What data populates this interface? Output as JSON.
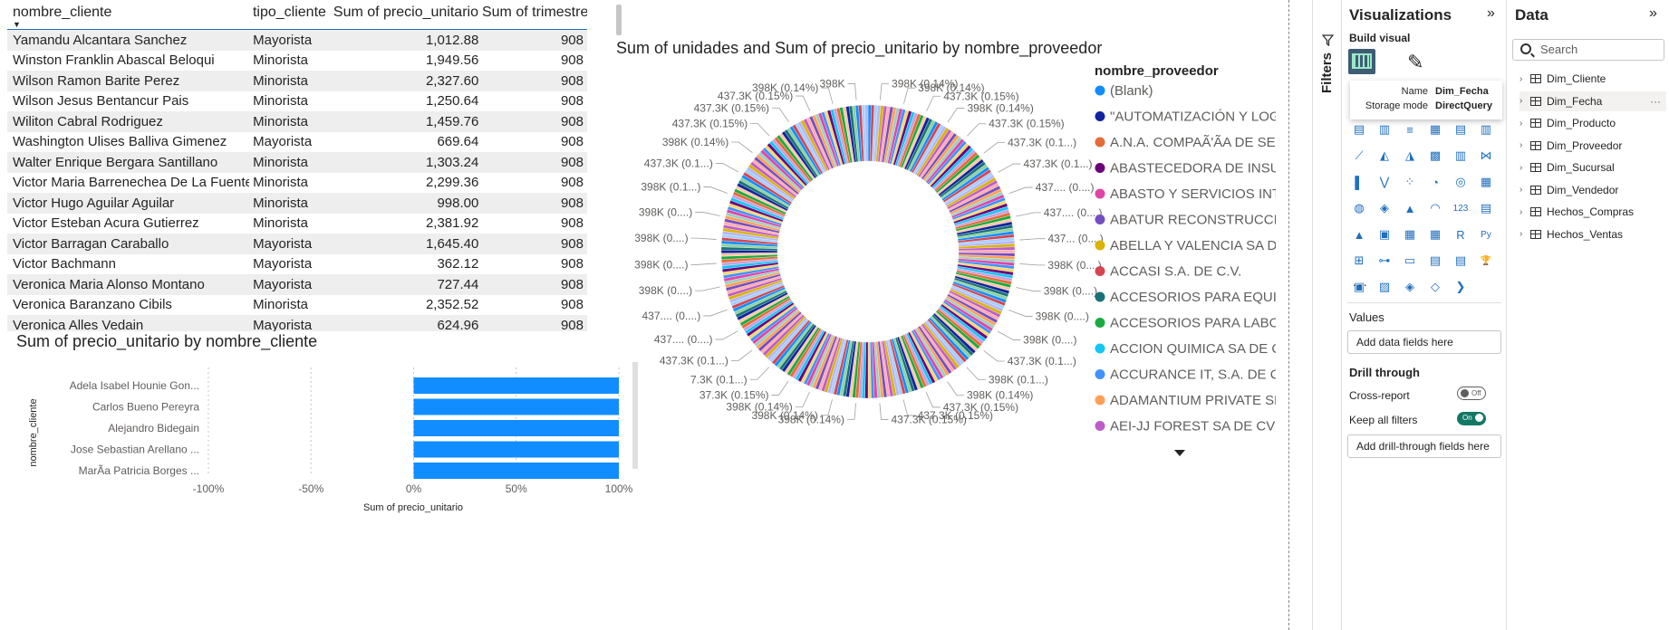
{
  "table": {
    "headers": [
      "nombre_cliente",
      "tipo_cliente",
      "Sum of precio_unitario",
      "Sum of trimestre"
    ],
    "rows": [
      [
        "Yamandu Alcantara Sanchez",
        "Mayorista",
        "1,012.88",
        "908"
      ],
      [
        "Winston Franklin Abascal Beloqui",
        "Minorista",
        "1,949.56",
        "908"
      ],
      [
        "Wilson Ramon Barite Perez",
        "Minorista",
        "2,327.60",
        "908"
      ],
      [
        "Wilson Jesus Bentancur Pais",
        "Minorista",
        "1,250.64",
        "908"
      ],
      [
        "Wiliton Cabral Rodriguez",
        "Minorista",
        "1,459.76",
        "908"
      ],
      [
        "Washington Ulises Balliva Gimenez",
        "Mayorista",
        "669.64",
        "908"
      ],
      [
        "Walter Enrique Bergara Santillano",
        "Minorista",
        "1,303.24",
        "908"
      ],
      [
        "Victor Maria Barrenechea De La Fuente",
        "Minorista",
        "2,299.36",
        "908"
      ],
      [
        "Victor Hugo Aguilar Aguilar",
        "Minorista",
        "998.00",
        "908"
      ],
      [
        "Victor Esteban Acura Gutierrez",
        "Minorista",
        "2,381.92",
        "908"
      ],
      [
        "Victor Barragan Caraballo",
        "Mayorista",
        "1,645.40",
        "908"
      ],
      [
        "Victor Bachmann",
        "Mayorista",
        "362.12",
        "908"
      ],
      [
        "Veronica Maria Alonso Montano",
        "Mayorista",
        "727.44",
        "908"
      ],
      [
        "Veronica Baranzano Cibils",
        "Minorista",
        "2,352.52",
        "908"
      ],
      [
        "Veronica Alles Vedain",
        "Mayorista",
        "624.96",
        "908"
      ]
    ]
  },
  "bar_chart": {
    "title": "Sum of precio_unitario by nombre_cliente",
    "ylabel": "nombre_cliente",
    "xlabel": "Sum of precio_unitario",
    "categories": [
      "Adela Isabel Hounie Gon...",
      "Carlos Bueno Pereyra",
      "Alejandro Bidegain",
      "Jose Sebastian Arellano ...",
      "MarÃ­a Patricia Borges ..."
    ],
    "values": [
      100,
      100,
      100,
      100,
      100
    ],
    "ticks": [
      "-100%",
      "-50%",
      "0%",
      "50%",
      "100%"
    ],
    "tick_values": [
      -100,
      -50,
      0,
      50,
      100
    ],
    "color": "#118DFF"
  },
  "chart_data": {
    "type": "pie",
    "title": "Sum of unidades and Sum of precio_unitario by nombre_proveedor",
    "legend_title": "nombre_proveedor",
    "legend": [
      {
        "name": "(Blank)",
        "color": "#118DFF"
      },
      {
        "name": "\"AUTOMATIZACIÓN Y LOGI...",
        "color": "#12239E"
      },
      {
        "name": "A.N.A. COMPAÃ'Ã­A DE SE...",
        "color": "#E66C37"
      },
      {
        "name": "ABASTECEDORA DE INSUM...",
        "color": "#6B007B"
      },
      {
        "name": "ABASTO Y SERVICIOS INTE...",
        "color": "#E044A7"
      },
      {
        "name": "ABATUR RECONSTRUCCION...",
        "color": "#744EC2"
      },
      {
        "name": "ABELLA Y VALENCIA SA DE ...",
        "color": "#D9B300"
      },
      {
        "name": "ACCASI S.A. DE C.V.",
        "color": "#D64550"
      },
      {
        "name": "ACCESORIOS PARA EQUIPO...",
        "color": "#197278"
      },
      {
        "name": "ACCESORIOS PARA LABOR...",
        "color": "#1AAB40"
      },
      {
        "name": "ACCION QUIMICA SA DE CV",
        "color": "#15C6F4"
      },
      {
        "name": "ACCURANCE IT, S.A. DE C.V.",
        "color": "#4092FF"
      },
      {
        "name": "ADAMANTIUM PRIVATE SE...",
        "color": "#FFA058"
      },
      {
        "name": "AEI-JJ FOREST SA DE CV",
        "color": "#BE5DC9"
      }
    ],
    "slice_labels": [
      "398K (0.14%)",
      "398K (0.14%)",
      "437.3K (0.15%)",
      "398K (0.14%)",
      "437.3K (0.15%)",
      "437.3K (0.1...)",
      "437.3K (0.1...)",
      "437.... (0....)",
      "437.... (0....)",
      "437... (0....)",
      "398K (0....)",
      "398K (0....)",
      "398K (0....)",
      "398K (0....)",
      "437.3K (0.1...)",
      "398K (0.1...)",
      "398K (0.14%)",
      "437.3K (0.15%)",
      "437.3K (0.15%)",
      "437.3K (0.15%)",
      "398K (0.14%)",
      "398K (0.14%)",
      "398K (0.14%)",
      "37.3K (0.15%)",
      "7.3K (0.1...)",
      "437.3K (0.1...)",
      "437.... (0....)",
      "437.... (0....)",
      "398K (0....)",
      "398K (0....)",
      "398K (0....)",
      "398K (0....)",
      "398K (0.1...)",
      "437.3K (0.1...)",
      "398K (0.14%)",
      "437.3K (0.15%)",
      "437.3K (0.15%)",
      "437.3K (0.15%)",
      "398K (0.14%)",
      "398K"
    ],
    "slice_count": 290
  },
  "filters": {
    "label": "Filters"
  },
  "visualizations": {
    "title": "Visualizations",
    "build_visual": "Build visual",
    "values_label": "Values",
    "values_placeholder": "Add data fields here",
    "drill_through": "Drill through",
    "cross_report": "Cross-report",
    "cross_report_state": "Off",
    "keep_filters": "Keep all filters",
    "keep_filters_state": "On",
    "drill_placeholder": "Add drill-through fields here",
    "more": "...",
    "icons": [
      "stacked-bar",
      "stacked-column",
      "clustered-bar",
      "clustered-column",
      "100-bar",
      "100-column",
      "line",
      "area",
      "stacked-area",
      "line-column",
      "line-clustered-column",
      "ribbon",
      "waterfall",
      "funnel",
      "scatter",
      "pie",
      "donut",
      "treemap",
      "map",
      "filled-map",
      "azure-map",
      "gauge",
      "card",
      "multi-row-card",
      "kpi",
      "slicer",
      "table",
      "matrix",
      "r-visual",
      "python-visual",
      "key-influencers",
      "decomposition-tree",
      "qa",
      "narrative",
      "paginated",
      "goals",
      "power-apps",
      "power-automate",
      "arcgis",
      "diamond",
      "chevron"
    ],
    "icon_glyphs": [
      "▤",
      "▥",
      "≡",
      "▦",
      "▤",
      "▥",
      "⟋",
      "◭",
      "◮",
      "▩",
      "▥",
      "⋈",
      "▌",
      "⋁",
      "⁘",
      "◔",
      "◎",
      "▦",
      "◍",
      "◈",
      "▲",
      "◠",
      "123",
      "▤",
      "▲",
      "▣",
      "▦",
      "▦",
      "R",
      "Py",
      "⊞",
      "⊶",
      "▭",
      "▤",
      "▤",
      "🏆",
      "▣",
      "▨",
      "◈",
      "◇",
      "❯"
    ]
  },
  "tooltip": {
    "name_key": "Name",
    "name_val": "Dim_Fecha",
    "mode_key": "Storage mode",
    "mode_val": "DirectQuery"
  },
  "data_pane": {
    "title": "Data",
    "search_placeholder": "Search",
    "tables": [
      "Dim_Cliente",
      "Dim_Fecha",
      "Dim_Producto",
      "Dim_Proveedor",
      "Dim_Sucursal",
      "Dim_Vendedor",
      "Hechos_Compras",
      "Hechos_Ventas"
    ],
    "highlighted": 1,
    "more": "···"
  }
}
